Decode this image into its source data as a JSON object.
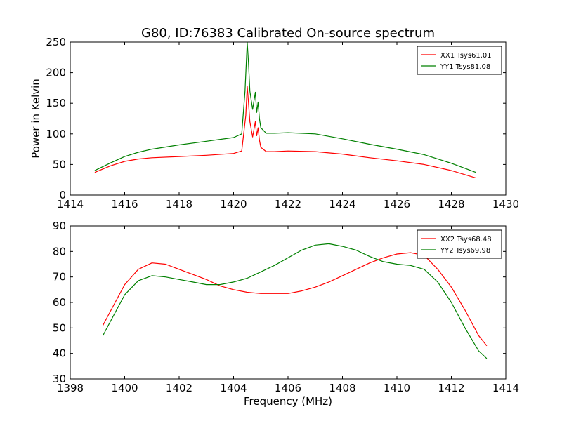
{
  "figure": {
    "title": "G80, ID:76383 Calibrated On-source spectrum",
    "ylabel": "Power in Kelvin",
    "xlabel": "Frequency (MHz)"
  },
  "chart_data": [
    {
      "type": "line",
      "xlim": [
        1414,
        1430
      ],
      "ylim": [
        0,
        250
      ],
      "xticks": [
        1414,
        1416,
        1418,
        1420,
        1422,
        1424,
        1426,
        1428,
        1430
      ],
      "yticks": [
        0,
        50,
        100,
        150,
        200,
        250
      ],
      "ylabel": "Power in Kelvin",
      "xlabel": "",
      "grid": false,
      "legend_position": "top-right",
      "series": [
        {
          "name": "XX1 Tsys61.01",
          "color": "#ff0000",
          "x": [
            1414.9,
            1415.5,
            1416,
            1416.5,
            1417,
            1418,
            1419,
            1420,
            1420.3,
            1420.45,
            1420.5,
            1420.55,
            1420.6,
            1420.7,
            1420.8,
            1420.85,
            1420.9,
            1420.95,
            1421,
            1421.2,
            1421.5,
            1422,
            1423,
            1424,
            1425,
            1426,
            1427,
            1428,
            1428.9
          ],
          "y": [
            37,
            48,
            55,
            59,
            61,
            63,
            65,
            68,
            72,
            130,
            178,
            150,
            120,
            95,
            120,
            97,
            110,
            90,
            78,
            71,
            71,
            72,
            71,
            67,
            61,
            56,
            50,
            40,
            28
          ]
        },
        {
          "name": "YY1 Tsys81.08",
          "color": "#008000",
          "x": [
            1414.9,
            1415.5,
            1416,
            1416.5,
            1417,
            1418,
            1419,
            1420,
            1420.3,
            1420.42,
            1420.5,
            1420.55,
            1420.6,
            1420.7,
            1420.8,
            1420.85,
            1420.9,
            1420.95,
            1421,
            1421.2,
            1421.5,
            1422,
            1423,
            1424,
            1425,
            1426,
            1427,
            1428,
            1428.9
          ],
          "y": [
            40,
            53,
            63,
            70,
            75,
            82,
            88,
            94,
            100,
            170,
            250,
            215,
            170,
            140,
            168,
            135,
            152,
            125,
            110,
            101,
            101,
            102,
            100,
            92,
            83,
            75,
            66,
            52,
            37
          ]
        }
      ]
    },
    {
      "type": "line",
      "xlim": [
        1398,
        1414
      ],
      "ylim": [
        30,
        90
      ],
      "xticks": [
        1398,
        1400,
        1402,
        1404,
        1406,
        1408,
        1410,
        1412,
        1414
      ],
      "yticks": [
        30,
        40,
        50,
        60,
        70,
        80,
        90
      ],
      "xlabel": "Frequency (MHz)",
      "ylabel": "",
      "grid": false,
      "legend_position": "top-right",
      "series": [
        {
          "name": "XX2 Tsys68.48",
          "color": "#ff0000",
          "x": [
            1399.2,
            1399.5,
            1400,
            1400.5,
            1401,
            1401.5,
            1402,
            1402.5,
            1403,
            1403.5,
            1404,
            1404.5,
            1405,
            1405.5,
            1406,
            1406.5,
            1407,
            1407.5,
            1408,
            1408.5,
            1409,
            1409.5,
            1410,
            1410.5,
            1411,
            1411.5,
            1412,
            1412.5,
            1413,
            1413.3
          ],
          "y": [
            51,
            57,
            67,
            73,
            75.5,
            75,
            73,
            71,
            69,
            66.5,
            65,
            64,
            63.5,
            63.5,
            63.5,
            64.5,
            66,
            68,
            70.5,
            73,
            75.5,
            77.5,
            79,
            79.5,
            78.5,
            73,
            66,
            57,
            47,
            43
          ]
        },
        {
          "name": "YY2 Tsys69.98",
          "color": "#008000",
          "x": [
            1399.2,
            1399.5,
            1400,
            1400.5,
            1401,
            1401.5,
            1402,
            1402.5,
            1403,
            1403.5,
            1404,
            1404.5,
            1405,
            1405.5,
            1406,
            1406.5,
            1407,
            1407.5,
            1408,
            1408.5,
            1409,
            1409.5,
            1410,
            1410.5,
            1411,
            1411.5,
            1412,
            1412.5,
            1413,
            1413.3
          ],
          "y": [
            47,
            53,
            63,
            68.5,
            70.5,
            70,
            69,
            68,
            67,
            67,
            68,
            69.5,
            72,
            74.5,
            77.5,
            80.5,
            82.5,
            83,
            82,
            80.5,
            78,
            76,
            75,
            74.5,
            73,
            68,
            60,
            50,
            41,
            38
          ]
        }
      ]
    }
  ]
}
